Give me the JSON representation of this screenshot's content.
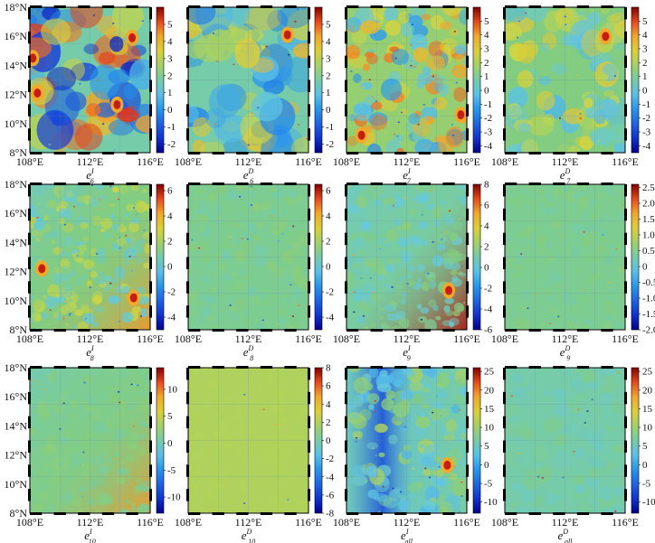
{
  "chart_data": [
    {
      "type": "heatmap",
      "panel": "e^I_6",
      "label": {
        "base": "e",
        "sup": "I",
        "sub": "6"
      },
      "x_ticks": [
        "108°E",
        "112°E",
        "116°E"
      ],
      "y_ticks": [
        "8°N",
        "10°N",
        "12°N",
        "14°N",
        "16°N",
        "18°N"
      ],
      "xlim": [
        108,
        116
      ],
      "ylim": [
        8,
        18
      ],
      "colorbar": {
        "range": [
          -2.5,
          6
        ],
        "ticks": [
          "-2",
          "-1",
          "0",
          "1",
          "2",
          "3",
          "4",
          "5"
        ]
      },
      "field": {
        "seed": 11,
        "scale": 1.0,
        "anom": 0.85,
        "noise": 0.05,
        "tint": 0.0,
        "hot": [
          [
            108.2,
            14.5
          ],
          [
            108.5,
            12.1
          ],
          [
            114.8,
            15.9
          ],
          [
            113.8,
            11.3
          ]
        ]
      }
    },
    {
      "type": "heatmap",
      "panel": "e^D_6",
      "label": {
        "base": "e",
        "sup": "D",
        "sub": "6"
      },
      "x_ticks": [
        "108°E",
        "112°E",
        "116°E"
      ],
      "y_ticks": [
        "8°N",
        "10°N",
        "12°N",
        "14°N",
        "16°N",
        "18°N"
      ],
      "xlim": [
        108,
        116
      ],
      "ylim": [
        8,
        18
      ],
      "colorbar": {
        "range": [
          -2.5,
          6
        ],
        "ticks": [
          "-2",
          "-1",
          "0",
          "1",
          "2",
          "3",
          "4",
          "5"
        ]
      },
      "field": {
        "seed": 12,
        "scale": 1.0,
        "anom": 0.55,
        "noise": 0.05,
        "tint": 0.0,
        "hot": [
          [
            114.6,
            16.1
          ]
        ]
      }
    },
    {
      "type": "heatmap",
      "panel": "e^I_7",
      "label": {
        "base": "e",
        "sup": "I",
        "sub": "7"
      },
      "x_ticks": [
        "108°E",
        "112°E",
        "116°E"
      ],
      "y_ticks": [
        "8°N",
        "10°N",
        "12°N",
        "14°N",
        "16°N",
        "18°N"
      ],
      "xlim": [
        108,
        116
      ],
      "ylim": [
        8,
        18
      ],
      "colorbar": {
        "range": [
          -4.5,
          6
        ],
        "ticks": [
          "-4",
          "-3",
          "-2",
          "-1",
          "0",
          "1",
          "2",
          "3",
          "4",
          "5"
        ]
      },
      "field": {
        "seed": 13,
        "scale": 1.8,
        "anom": 0.6,
        "noise": 0.12,
        "tint": 0.08,
        "hot": [
          [
            115.6,
            10.6
          ],
          [
            109.0,
            9.2
          ]
        ]
      }
    },
    {
      "type": "heatmap",
      "panel": "e^D_7",
      "label": {
        "base": "e",
        "sup": "D",
        "sub": "7"
      },
      "x_ticks": [
        "108°E",
        "112°E",
        "116°E"
      ],
      "y_ticks": [
        "8°N",
        "10°N",
        "12°N",
        "14°N",
        "16°N",
        "18°N"
      ],
      "xlim": [
        108,
        116
      ],
      "ylim": [
        8,
        18
      ],
      "colorbar": {
        "range": [
          -4.5,
          6
        ],
        "ticks": [
          "-4",
          "-3",
          "-2",
          "-1",
          "0",
          "1",
          "2",
          "3",
          "4",
          "5"
        ]
      },
      "field": {
        "seed": 14,
        "scale": 1.4,
        "anom": 0.35,
        "noise": 0.06,
        "tint": 0.05,
        "hot": [
          [
            114.7,
            16.0
          ]
        ]
      }
    },
    {
      "type": "heatmap",
      "panel": "e^I_8",
      "label": {
        "base": "e",
        "sup": "I",
        "sub": "8"
      },
      "x_ticks": [
        "108°E",
        "112°E",
        "116°E"
      ],
      "y_ticks": [
        "8°N",
        "10°N",
        "12°N",
        "14°N",
        "16°N",
        "18°N"
      ],
      "xlim": [
        108,
        116
      ],
      "ylim": [
        8,
        18
      ],
      "colorbar": {
        "range": [
          -5,
          6.5
        ],
        "ticks": [
          "-4",
          "-2",
          "0",
          "2",
          "4",
          "6"
        ]
      },
      "field": {
        "seed": 21,
        "scale": 3.0,
        "anom": 0.25,
        "noise": 0.14,
        "tint": 0.05,
        "grad": 0.18,
        "hot": [
          [
            114.9,
            10.2
          ],
          [
            108.8,
            12.2
          ]
        ]
      }
    },
    {
      "type": "heatmap",
      "panel": "e^D_8",
      "label": {
        "base": "e",
        "sup": "D",
        "sub": "8"
      },
      "x_ticks": [
        "108°E",
        "112°E",
        "116°E"
      ],
      "y_ticks": [
        "8°N",
        "10°N",
        "12°N",
        "14°N",
        "16°N",
        "18°N"
      ],
      "xlim": [
        108,
        116
      ],
      "ylim": [
        8,
        18
      ],
      "colorbar": {
        "range": [
          -5,
          6.5
        ],
        "ticks": [
          "-4",
          "-2",
          "0",
          "2",
          "4",
          "6"
        ]
      },
      "field": {
        "seed": 22,
        "scale": 3.0,
        "anom": 0.08,
        "noise": 0.05,
        "tint": 0.03,
        "hot": []
      }
    },
    {
      "type": "heatmap",
      "panel": "e^I_9",
      "label": {
        "base": "e",
        "sup": "I",
        "sub": "9"
      },
      "x_ticks": [
        "108°E",
        "112°E",
        "116°E"
      ],
      "y_ticks": [
        "8°N",
        "10°N",
        "12°N",
        "14°N",
        "16°N",
        "18°N"
      ],
      "xlim": [
        108,
        116
      ],
      "ylim": [
        8,
        18
      ],
      "colorbar": {
        "range": [
          -6,
          8
        ],
        "ticks": [
          "-6",
          "-4",
          "-2",
          "0",
          "2",
          "4",
          "6",
          "8"
        ]
      },
      "field": {
        "seed": 23,
        "scale": 3.0,
        "anom": 0.15,
        "noise": 0.08,
        "tint": 0.0,
        "grad": 0.32,
        "hot": [
          [
            114.8,
            10.7
          ]
        ]
      }
    },
    {
      "type": "heatmap",
      "panel": "e^D_9",
      "label": {
        "base": "e",
        "sup": "D",
        "sub": "9"
      },
      "x_ticks": [
        "108°E",
        "112°E",
        "116°E"
      ],
      "y_ticks": [
        "8°N",
        "10°N",
        "12°N",
        "14°N",
        "16°N",
        "18°N"
      ],
      "xlim": [
        108,
        116
      ],
      "ylim": [
        8,
        18
      ],
      "colorbar": {
        "range": [
          -2,
          2.6
        ],
        "ticks": [
          "-2.0",
          "-1.5",
          "-1.0",
          "-0.5",
          "0",
          "0.5",
          "1.0",
          "1.5",
          "2.0",
          "2.5"
        ]
      },
      "field": {
        "seed": 24,
        "scale": 3.0,
        "anom": 0.06,
        "noise": 0.04,
        "tint": 0.03,
        "hot": []
      }
    },
    {
      "type": "heatmap",
      "panel": "e^I_10",
      "label": {
        "base": "e",
        "sup": "I",
        "sub": "10"
      },
      "x_ticks": [
        "108°E",
        "112°E",
        "116°E"
      ],
      "y_ticks": [
        "8°N",
        "10°N",
        "12°N",
        "14°N",
        "16°N",
        "18°N"
      ],
      "xlim": [
        108,
        116
      ],
      "ylim": [
        8,
        18
      ],
      "colorbar": {
        "range": [
          -13,
          14
        ],
        "ticks": [
          "-10",
          "-5",
          "0",
          "5",
          "10"
        ]
      },
      "field": {
        "seed": 31,
        "scale": 3.0,
        "anom": 0.06,
        "noise": 0.05,
        "tint": 0.04,
        "grad": 0.18,
        "hot": []
      }
    },
    {
      "type": "heatmap",
      "panel": "e^D_10",
      "label": {
        "base": "e",
        "sup": "D",
        "sub": "10"
      },
      "x_ticks": [
        "108°E",
        "112°E",
        "116°E"
      ],
      "y_ticks": [
        "8°N",
        "10°N",
        "12°N",
        "14°N",
        "16°N",
        "18°N"
      ],
      "xlim": [
        108,
        116
      ],
      "ylim": [
        8,
        18
      ],
      "colorbar": {
        "range": [
          -8,
          8
        ],
        "ticks": [
          "-8",
          "-6",
          "-4",
          "-2",
          "0",
          "2",
          "4",
          "6",
          "8"
        ]
      },
      "field": {
        "seed": 32,
        "scale": 3.0,
        "anom": 0.01,
        "noise": 0.015,
        "tint": 0.12,
        "hot": []
      }
    },
    {
      "type": "heatmap",
      "panel": "e^I_all",
      "label": {
        "base": "e",
        "sup": "I",
        "sub": "all"
      },
      "x_ticks": [
        "108°E",
        "112°E",
        "116°E"
      ],
      "y_ticks": [
        "8°N",
        "10°N",
        "12°N",
        "14°N",
        "16°N",
        "18°N"
      ],
      "xlim": [
        108,
        116
      ],
      "ylim": [
        8,
        18
      ],
      "colorbar": {
        "range": [
          -13,
          26
        ],
        "ticks": [
          "-10",
          "-5",
          "0",
          "5",
          "10",
          "15",
          "20",
          "25"
        ]
      },
      "field": {
        "seed": 33,
        "scale": 2.2,
        "anom": 0.25,
        "noise": 0.1,
        "tint": 0.0,
        "west": 0.28,
        "hot": [
          [
            114.7,
            11.3
          ]
        ]
      }
    },
    {
      "type": "heatmap",
      "panel": "e^D_all",
      "label": {
        "base": "e",
        "sup": "D",
        "sub": "all"
      },
      "x_ticks": [
        "108°E",
        "112°E",
        "116°E"
      ],
      "y_ticks": [
        "8°N",
        "10°N",
        "12°N",
        "14°N",
        "16°N",
        "18°N"
      ],
      "xlim": [
        108,
        116
      ],
      "ylim": [
        8,
        18
      ],
      "colorbar": {
        "range": [
          -13,
          26
        ],
        "ticks": [
          "-10",
          "-5",
          "0",
          "5",
          "10",
          "15",
          "20",
          "25"
        ]
      },
      "field": {
        "seed": 34,
        "scale": 2.2,
        "anom": 0.08,
        "noise": 0.05,
        "tint": 0.0,
        "hot": []
      }
    }
  ]
}
